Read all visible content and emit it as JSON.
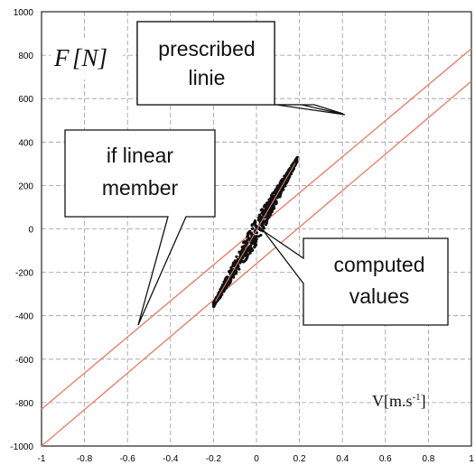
{
  "chart_data": {
    "type": "scatter",
    "title": "",
    "xlabel_prefix": "V[m.s",
    "xlabel_sup": "-1",
    "xlabel_suffix": "]",
    "ylabel_f": "F",
    "ylabel_n": "[N]",
    "xlim": [
      -1,
      1
    ],
    "ylim": [
      -1000,
      1000
    ],
    "xticks": [
      -1,
      -0.8,
      -0.6,
      -0.4,
      -0.2,
      0,
      0.2,
      0.4,
      0.6,
      0.8,
      1
    ],
    "xtick_labels": [
      "-1",
      "-0.8",
      "-0.6",
      "-0.4",
      "-0.2",
      "0",
      "0.2",
      "0.4",
      "0.6",
      "0.8",
      "1"
    ],
    "yticks": [
      -1000,
      -800,
      -600,
      -400,
      -200,
      0,
      200,
      400,
      600,
      800,
      1000
    ],
    "ytick_labels": [
      "-1000",
      "-800",
      "-600",
      "-400",
      "-200",
      "0",
      "200",
      "400",
      "600",
      "800",
      "1000"
    ],
    "grid": true,
    "reference_lines": [
      {
        "x": [
          -1,
          1
        ],
        "y": [
          -830,
          830
        ]
      },
      {
        "x": [
          -1,
          1
        ],
        "y": [
          -1000,
          680
        ]
      }
    ],
    "computed_values_cloud": {
      "x_range": [
        -0.2,
        0.19
      ],
      "y_range": [
        -350,
        320
      ]
    },
    "callouts": [
      {
        "id": "prescribed",
        "text_lines": [
          "prescribed",
          "linie"
        ]
      },
      {
        "id": "linear",
        "text_lines": [
          "if linear",
          "member"
        ]
      },
      {
        "id": "computed",
        "text_lines": [
          "computed",
          "values"
        ]
      }
    ],
    "colors": {
      "reference_line": "#e8806e",
      "cloud": "#111111",
      "grid": "#9a9a9a"
    }
  }
}
